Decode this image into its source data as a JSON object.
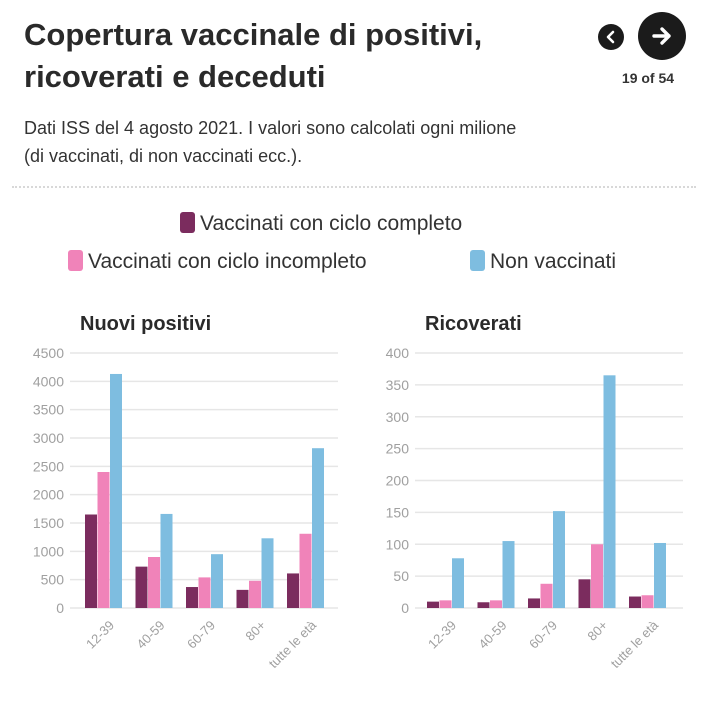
{
  "header": {
    "title_line1": "Copertura vaccinale di positivi,",
    "title_line2": "ricoverati e deceduti",
    "subtitle_line1": "Dati ISS del 4 agosto 2021. I valori sono calcolati ogni milione",
    "subtitle_line2": "(di vaccinati, di non vaccinati ecc.)."
  },
  "navigation": {
    "prev_icon": "chevron-left-icon",
    "next_icon": "arrow-right-icon",
    "page_counter": "19 of 54"
  },
  "colors": {
    "completo": "#7b2c5e",
    "incompleto": "#f083b9",
    "non_vaccinati": "#7ebde0",
    "grid": "#e6e6e6",
    "tick_text": "#a0a0a0"
  },
  "legend": [
    {
      "label": "Vaccinati con ciclo completo",
      "color": "#7b2c5e"
    },
    {
      "label": "Vaccinati con ciclo incompleto",
      "color": "#f083b9"
    },
    {
      "label": "Non vaccinati",
      "color": "#7ebde0"
    }
  ],
  "chart_data": [
    {
      "type": "bar",
      "title": "Nuovi positivi",
      "categories": [
        "12-39",
        "40-59",
        "60-79",
        "80+",
        "tutte le età"
      ],
      "ylim": [
        0,
        4500
      ],
      "yticks": [
        0,
        500,
        1000,
        1500,
        2000,
        2500,
        3000,
        3500,
        4000,
        4500
      ],
      "grid": true,
      "series": [
        {
          "name": "Vaccinati con ciclo completo",
          "values": [
            1650,
            730,
            370,
            320,
            610
          ]
        },
        {
          "name": "Vaccinati con ciclo incompleto",
          "values": [
            2400,
            900,
            540,
            480,
            1310
          ]
        },
        {
          "name": "Non vaccinati",
          "values": [
            4130,
            1660,
            950,
            1230,
            2820
          ]
        }
      ]
    },
    {
      "type": "bar",
      "title": "Ricoverati",
      "categories": [
        "12-39",
        "40-59",
        "60-79",
        "80+",
        "tutte le età"
      ],
      "ylim": [
        0,
        400
      ],
      "yticks": [
        0,
        50,
        100,
        150,
        200,
        250,
        300,
        350,
        400
      ],
      "grid": true,
      "series": [
        {
          "name": "Vaccinati con ciclo completo",
          "values": [
            10,
            9,
            15,
            45,
            18
          ]
        },
        {
          "name": "Vaccinati con ciclo incompleto",
          "values": [
            12,
            12,
            38,
            100,
            20
          ]
        },
        {
          "name": "Non vaccinati",
          "values": [
            78,
            105,
            152,
            365,
            102
          ]
        }
      ]
    }
  ]
}
